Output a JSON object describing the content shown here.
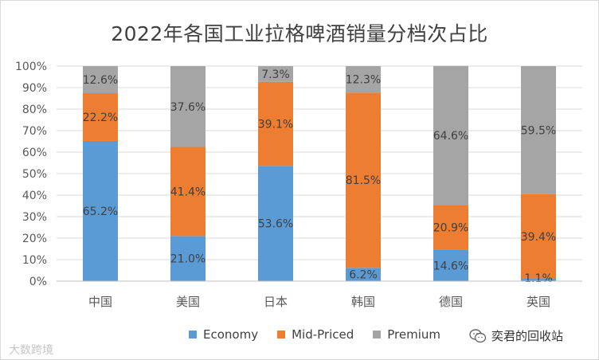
{
  "chart_data": {
    "type": "bar",
    "stacked": true,
    "percent": true,
    "title": "2022年各国工业拉格啤酒销量分档次占比",
    "categories": [
      "中国",
      "美国",
      "日本",
      "韩国",
      "德国",
      "英国"
    ],
    "series": [
      {
        "name": "Economy",
        "color": "#5b9bd5",
        "values": [
          65.2,
          21.0,
          53.6,
          6.2,
          14.6,
          1.1
        ]
      },
      {
        "name": "Mid-Priced",
        "color": "#ed7d31",
        "values": [
          22.2,
          41.4,
          39.1,
          81.5,
          20.9,
          39.4
        ]
      },
      {
        "name": "Premium",
        "color": "#a5a5a5",
        "values": [
          12.6,
          37.6,
          7.3,
          12.3,
          64.6,
          59.5
        ]
      }
    ],
    "ylim": [
      0,
      100
    ],
    "yticks": [
      "0%",
      "10%",
      "20%",
      "30%",
      "40%",
      "50%",
      "60%",
      "70%",
      "80%",
      "90%",
      "100%"
    ],
    "grid": true,
    "legend_position": "bottom"
  },
  "watermark": {
    "left_text": "大数跨境",
    "right_text": "奕君的回收站"
  }
}
